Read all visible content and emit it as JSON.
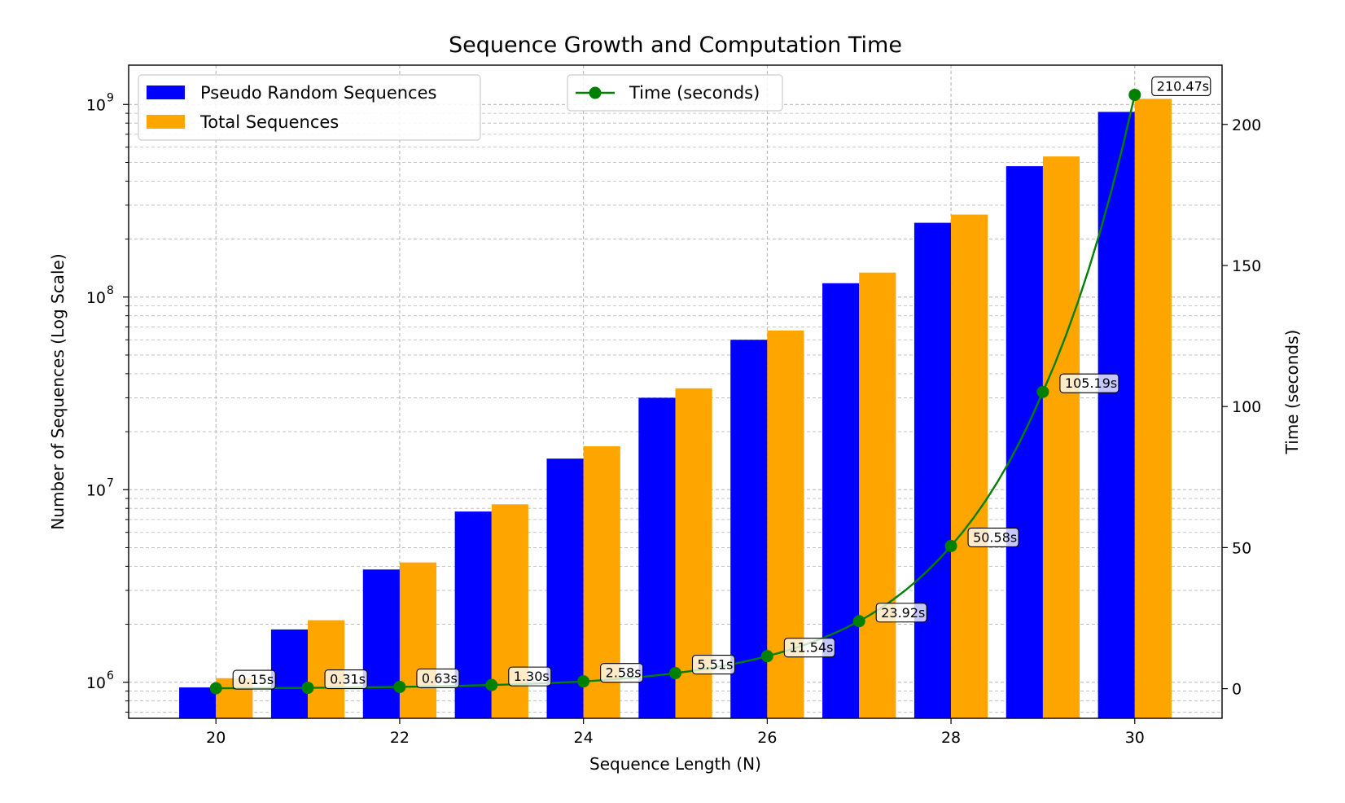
{
  "chart_data": {
    "type": "bar",
    "title": "Sequence Growth and Computation Time",
    "xlabel": "Sequence Length (N)",
    "ylabel": "Number of Sequences (Log Scale)",
    "y2label": "Time (seconds)",
    "yscale": "log",
    "ylim": [
      650000,
      1600000000
    ],
    "y2lim": [
      -10.5,
      221
    ],
    "xlim": [
      19.05,
      30.95
    ],
    "grid": true,
    "x": [
      20,
      21,
      22,
      23,
      24,
      25,
      26,
      27,
      28,
      29,
      30
    ],
    "x_ticks": [
      20,
      22,
      24,
      26,
      28,
      30
    ],
    "y_ticks": [
      {
        "value": 1000000,
        "base": "10",
        "exp": "6"
      },
      {
        "value": 10000000,
        "base": "10",
        "exp": "7"
      },
      {
        "value": 100000000,
        "base": "10",
        "exp": "8"
      },
      {
        "value": 1000000000,
        "base": "10",
        "exp": "9"
      }
    ],
    "y2_ticks": [
      0,
      50,
      100,
      150,
      200
    ],
    "series": [
      {
        "name": "Pseudo Random Sequences",
        "type": "bar",
        "axis": "left",
        "color": "#0000ff",
        "values": [
          940000,
          1880000,
          3850000,
          7700000,
          14500000,
          30000000,
          60000000,
          118000000,
          243000000,
          478000000,
          915000000
        ]
      },
      {
        "name": "Total Sequences",
        "type": "bar",
        "axis": "left",
        "color": "#ffa500",
        "values": [
          1050000,
          2100000,
          4190000,
          8390000,
          16800000,
          33600000,
          67100000,
          134000000,
          268000000,
          537000000,
          1070000000
        ]
      },
      {
        "name": "Time (seconds)",
        "type": "line",
        "axis": "right",
        "color": "#008000",
        "values": [
          0.15,
          0.31,
          0.63,
          1.3,
          2.58,
          5.51,
          11.54,
          23.92,
          50.58,
          105.19,
          210.47
        ],
        "labels": [
          "0.15s",
          "0.31s",
          "0.63s",
          "1.30s",
          "2.58s",
          "5.51s",
          "11.54s",
          "23.92s",
          "50.58s",
          "105.19s",
          "210.47s"
        ]
      }
    ],
    "legends": [
      "upper left",
      "upper center"
    ]
  }
}
